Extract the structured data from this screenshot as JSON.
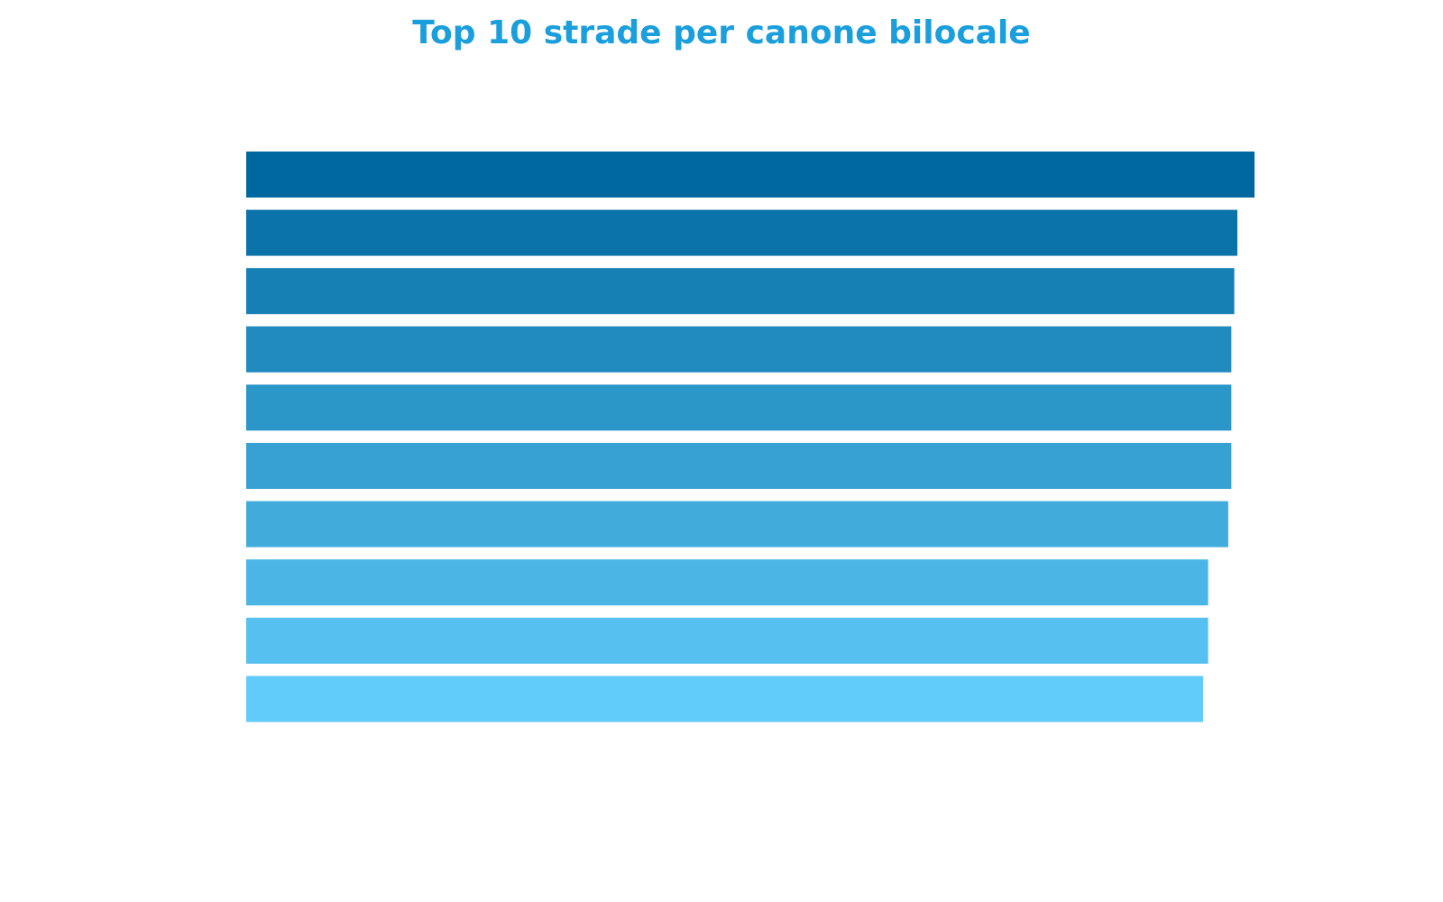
{
  "chart_data": {
    "type": "bar",
    "orientation": "horizontal",
    "title": "Top 10 strade per canone bilocale",
    "xlabel": "",
    "ylabel": "",
    "categories": [
      "",
      "",
      "",
      "",
      "",
      "",
      "",
      "",
      "",
      ""
    ],
    "values": [
      1,
      0.983,
      0.98,
      0.977,
      0.977,
      0.977,
      0.974,
      0.954,
      0.954,
      0.949
    ],
    "xlim": [
      0,
      1
    ],
    "grid": false,
    "legend": "none",
    "colors": [
      "#0068a0",
      "#0b73aa",
      "#167fb4",
      "#218abe",
      "#2b96c8",
      "#36a1d2",
      "#41acdc",
      "#4bb6e6",
      "#56c1f0",
      "#61ccfa"
    ]
  }
}
